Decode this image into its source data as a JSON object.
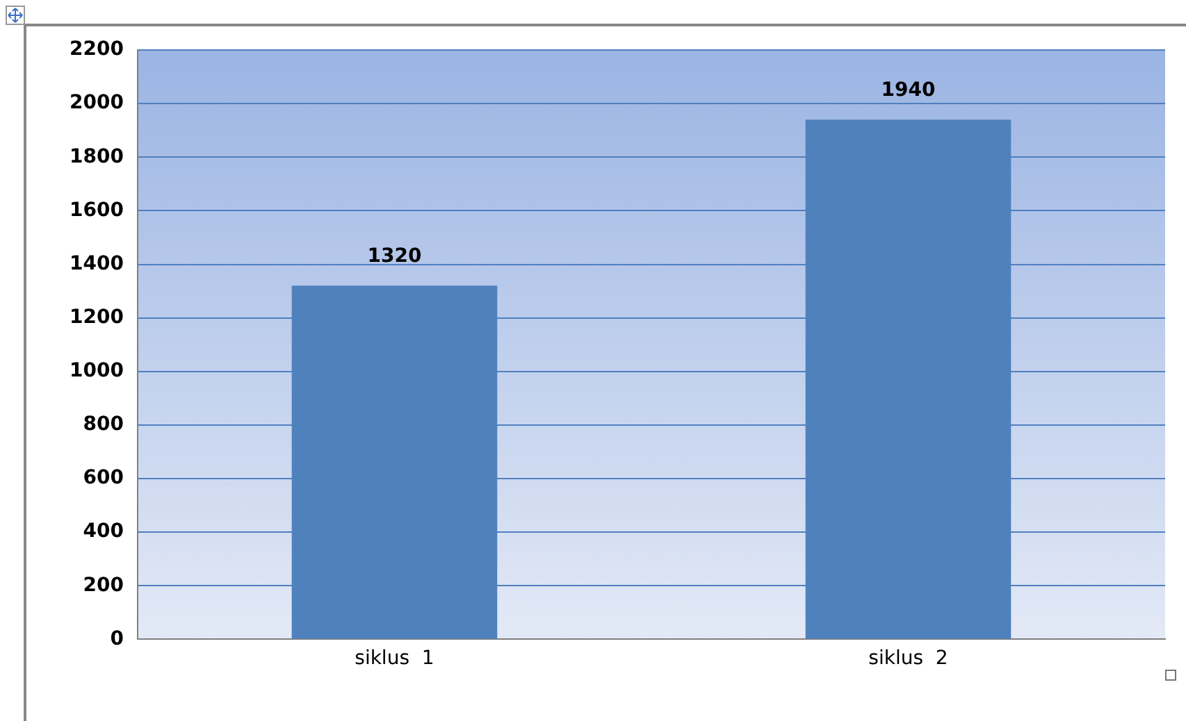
{
  "chart_data": {
    "type": "bar",
    "categories": [
      "siklus  1",
      "siklus  2"
    ],
    "values": [
      1320,
      1940
    ],
    "color": "#4f81bd",
    "ylim": [
      0,
      2200
    ],
    "yticks": [
      0,
      200,
      400,
      600,
      800,
      1000,
      1200,
      1400,
      1600,
      1800,
      2000,
      2200
    ],
    "grid": "y",
    "data_labels": true
  }
}
